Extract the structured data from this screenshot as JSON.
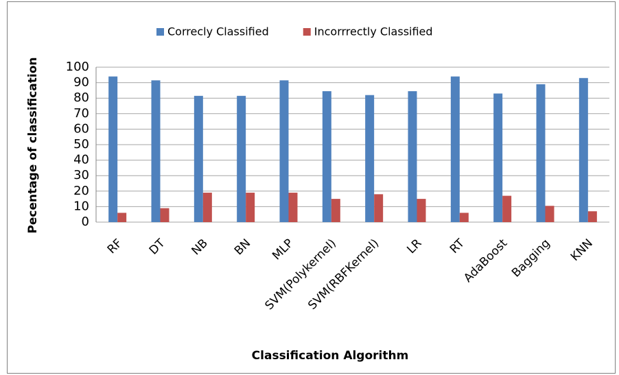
{
  "chart_data": {
    "type": "bar",
    "x_label": "Classification  Algorithm",
    "y_label": "Pecentage of classification",
    "categories": [
      "RF",
      "DT",
      "NB",
      "BN",
      "MLP",
      "SVM(Polykernel)",
      "SVM(RBFKernel)",
      "LR",
      "RT",
      "AdaBoost",
      "Bagging",
      "KNN"
    ],
    "series": [
      {
        "name": "Correcly Classified",
        "color": "#4f81bd",
        "values": [
          94,
          91.5,
          81.5,
          81.5,
          91.5,
          84.5,
          82,
          84.5,
          94,
          83,
          89,
          93
        ]
      },
      {
        "name": "Incorrrectly Classified",
        "color": "#c0504d",
        "values": [
          6,
          9,
          19,
          19,
          19,
          15,
          18,
          15,
          6,
          17,
          10.5,
          7
        ]
      }
    ],
    "ylim": [
      0,
      100
    ],
    "yticks": [
      0,
      10,
      20,
      30,
      40,
      50,
      60,
      70,
      80,
      90,
      100
    ],
    "grid": true,
    "legend": "top"
  }
}
